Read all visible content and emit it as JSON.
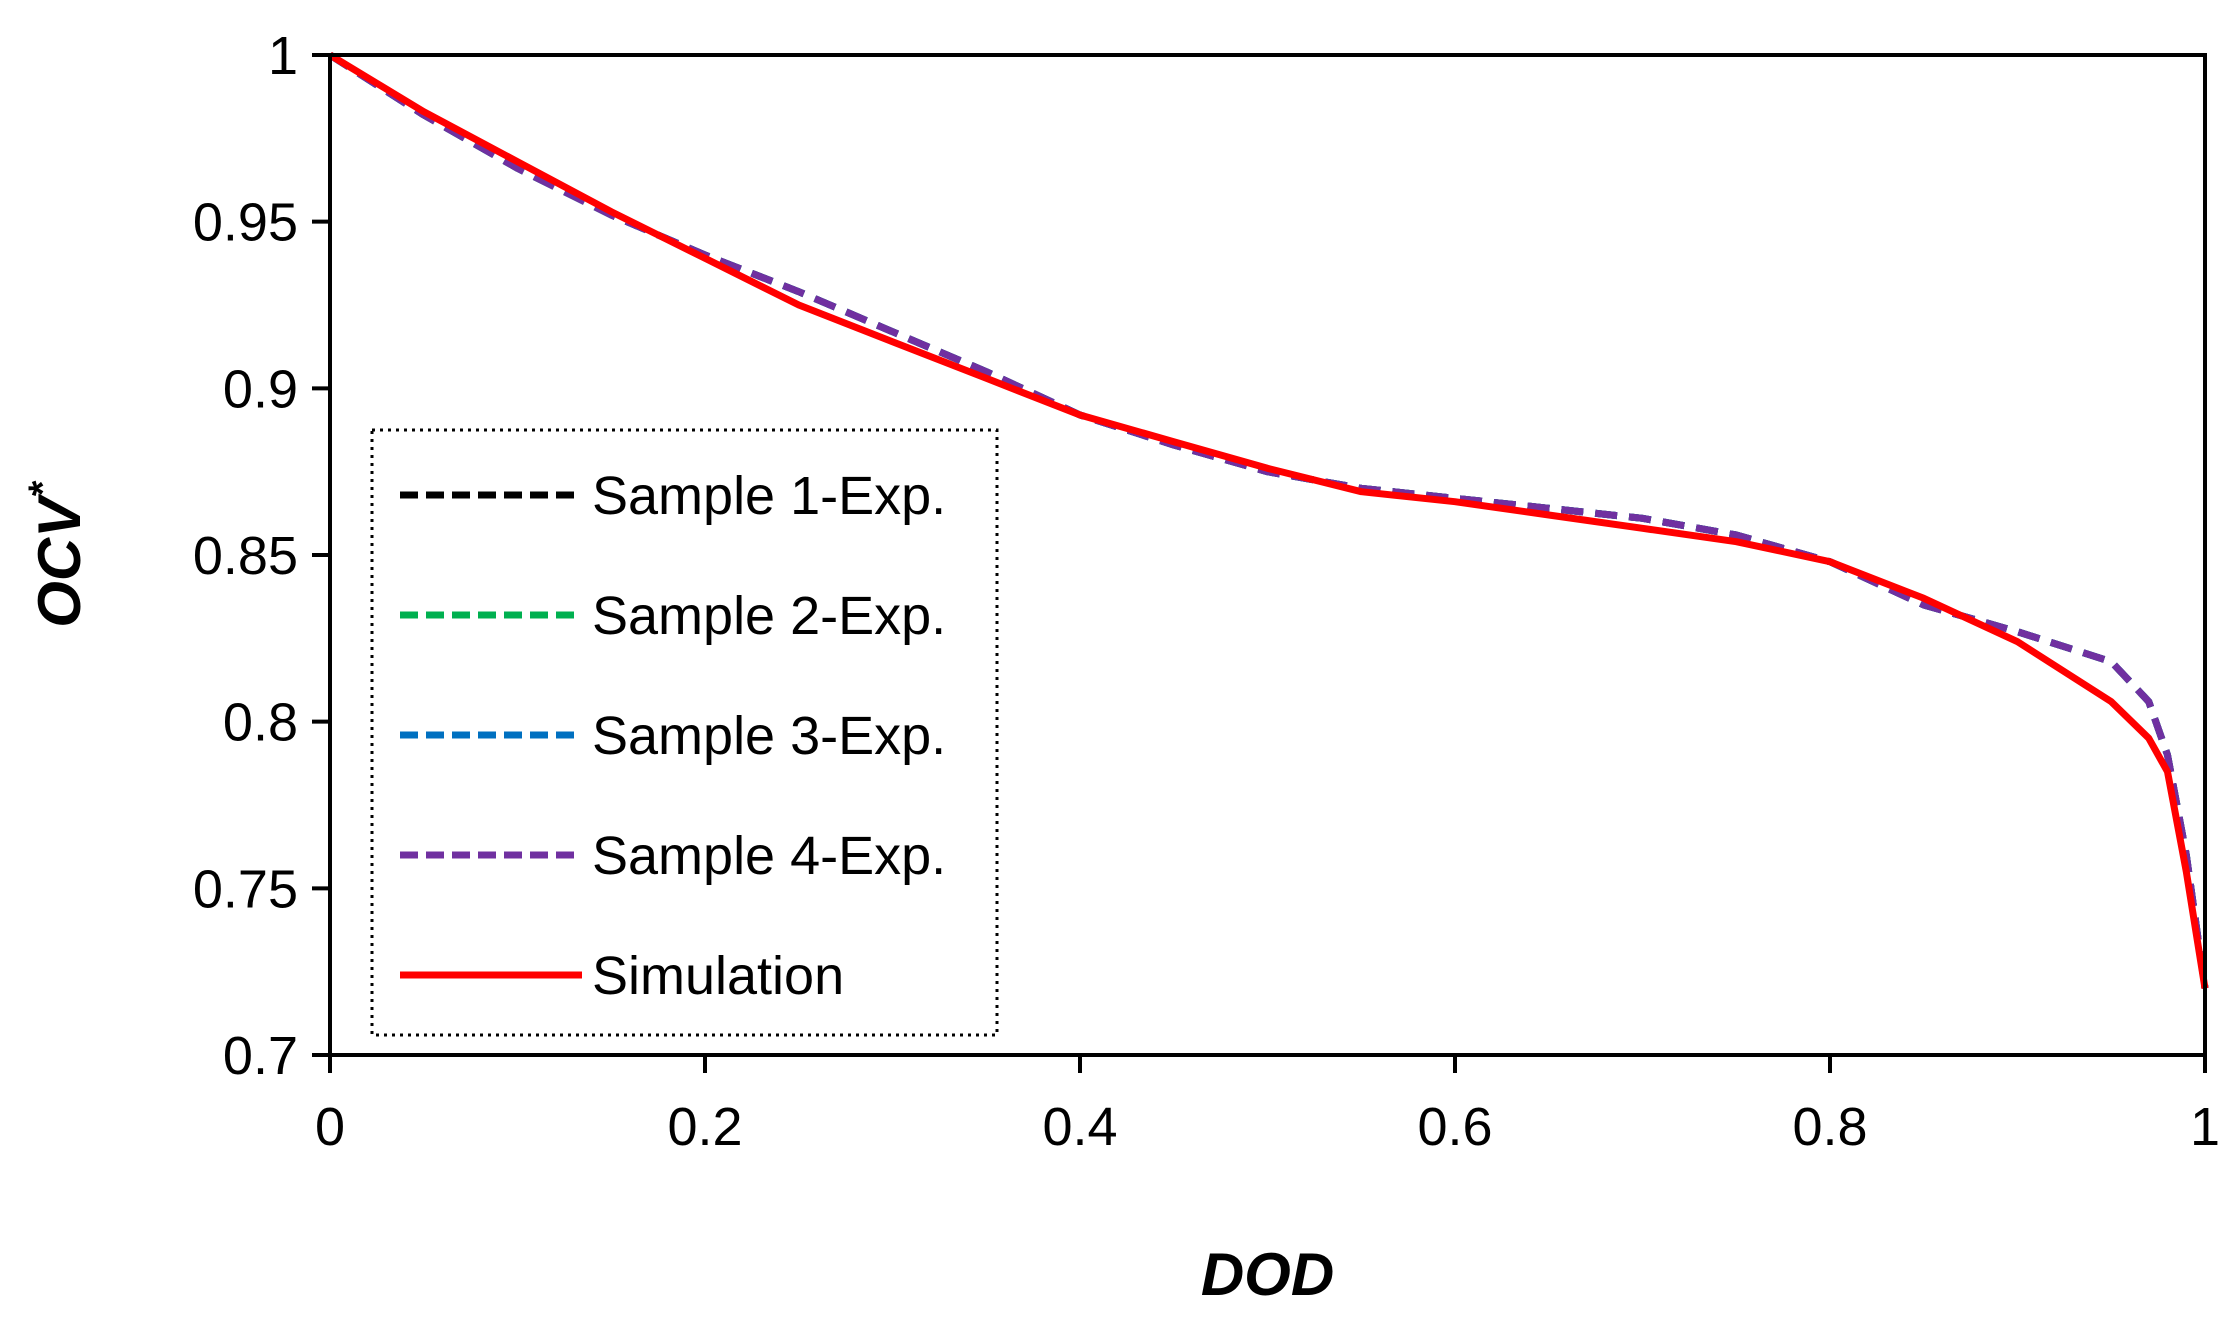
{
  "chart_data": {
    "type": "line",
    "xlabel": "DOD",
    "ylabel": "OCV",
    "ylabel_superscript": "*",
    "xlim": [
      0,
      1
    ],
    "ylim": [
      0.7,
      1
    ],
    "xticks": [
      0,
      0.2,
      0.4,
      0.6,
      0.8,
      1
    ],
    "xtick_labels": [
      "0",
      "0.2",
      "0.4",
      "0.6",
      "0.8",
      "1"
    ],
    "yticks": [
      0.7,
      0.75,
      0.8,
      0.85,
      0.9,
      0.95,
      1
    ],
    "ytick_labels": [
      "0.7",
      "0.75",
      "0.8",
      "0.85",
      "0.9",
      "0.95",
      "1"
    ],
    "grid": false,
    "legend_position": "bottom-left",
    "x": [
      0,
      0.05,
      0.1,
      0.15,
      0.2,
      0.25,
      0.3,
      0.35,
      0.4,
      0.45,
      0.5,
      0.55,
      0.6,
      0.65,
      0.7,
      0.75,
      0.8,
      0.85,
      0.9,
      0.95,
      0.97,
      0.98,
      0.99,
      1.0
    ],
    "series": [
      {
        "name": "Sample 1-Exp.",
        "color": "#000000",
        "style": "dashed",
        "values": [
          1.0,
          0.982,
          0.966,
          0.952,
          0.94,
          0.929,
          0.917,
          0.905,
          0.892,
          0.883,
          0.875,
          0.87,
          0.867,
          0.864,
          0.861,
          0.856,
          0.848,
          0.835,
          0.827,
          0.818,
          0.806,
          0.79,
          0.76,
          0.72
        ]
      },
      {
        "name": "Sample 2-Exp.",
        "color": "#00b050",
        "style": "dashed",
        "values": [
          1.0,
          0.982,
          0.966,
          0.952,
          0.94,
          0.929,
          0.917,
          0.905,
          0.892,
          0.883,
          0.875,
          0.87,
          0.867,
          0.864,
          0.861,
          0.856,
          0.848,
          0.835,
          0.827,
          0.818,
          0.806,
          0.79,
          0.76,
          0.72
        ]
      },
      {
        "name": "Sample 3-Exp.",
        "color": "#0070c0",
        "style": "dashed",
        "values": [
          1.0,
          0.982,
          0.966,
          0.952,
          0.94,
          0.929,
          0.917,
          0.905,
          0.892,
          0.883,
          0.875,
          0.87,
          0.867,
          0.864,
          0.861,
          0.856,
          0.848,
          0.835,
          0.827,
          0.818,
          0.806,
          0.79,
          0.76,
          0.72
        ]
      },
      {
        "name": "Sample 4-Exp.",
        "color": "#7030a0",
        "style": "dashed",
        "values": [
          1.0,
          0.982,
          0.966,
          0.952,
          0.94,
          0.929,
          0.917,
          0.905,
          0.892,
          0.883,
          0.875,
          0.87,
          0.867,
          0.864,
          0.861,
          0.856,
          0.848,
          0.835,
          0.827,
          0.818,
          0.806,
          0.79,
          0.76,
          0.72
        ]
      },
      {
        "name": "Simulation",
        "color": "#ff0000",
        "style": "solid",
        "values": [
          1.0,
          0.983,
          0.968,
          0.953,
          0.939,
          0.925,
          0.914,
          0.903,
          0.892,
          0.884,
          0.876,
          0.869,
          0.866,
          0.862,
          0.858,
          0.854,
          0.848,
          0.837,
          0.824,
          0.806,
          0.795,
          0.785,
          0.755,
          0.72
        ]
      }
    ]
  }
}
